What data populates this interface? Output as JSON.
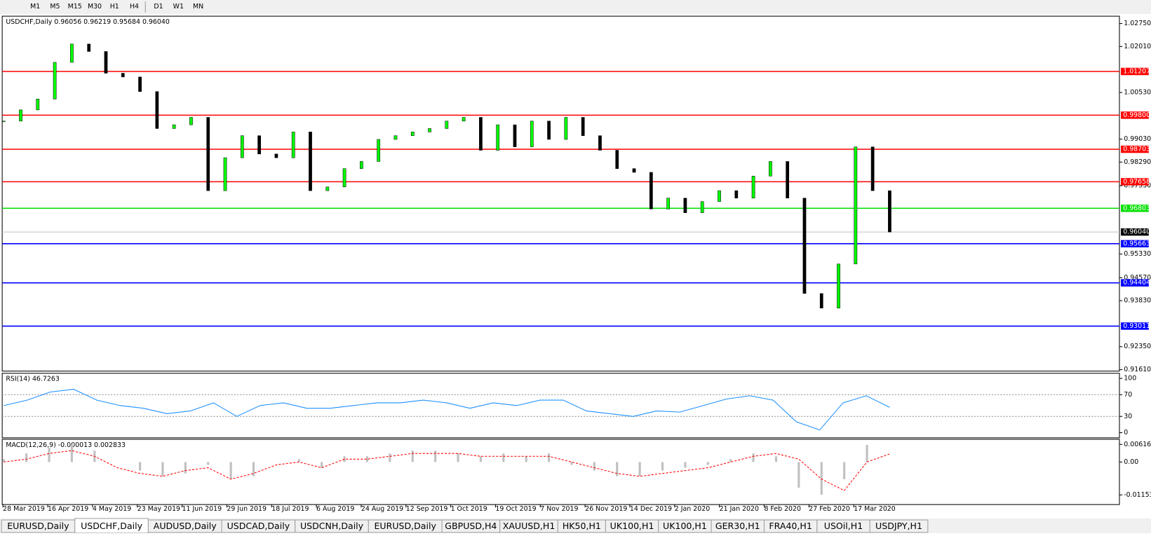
{
  "toolbar": [
    "M1",
    "M5",
    "M15",
    "M30",
    "H1",
    "H4",
    "D1",
    "W1",
    "MN"
  ],
  "chart_data": [
    {
      "type": "candlestick",
      "title": "USDCHF,Daily  0.96056 0.96219 0.95684 0.96040",
      "color_up": "#00ff00",
      "color_down": "#000000",
      "values": [
        0.9961,
        0.9997,
        1.0032,
        1.015,
        1.0209,
        1.0185,
        1.0115,
        1.0103,
        1.0056,
        0.9937,
        0.9949,
        0.9973,
        0.9737,
        0.9843,
        0.9914,
        0.9855,
        0.9843,
        0.9926,
        0.9737,
        0.9749,
        0.9808,
        0.9831,
        0.9902,
        0.9914,
        0.9926,
        0.9937,
        0.9961,
        0.9973,
        0.9867,
        0.9949,
        0.9878,
        0.9961,
        0.9902,
        0.9973,
        0.9914,
        0.9867,
        0.9808,
        0.9796,
        0.9678,
        0.9713,
        0.9666,
        0.9702,
        0.9737,
        0.9713,
        0.9784,
        0.9831,
        0.9713,
        0.9406,
        0.9359,
        0.9501,
        0.9878,
        0.9737,
        0.9604
      ],
      "ylim": [
        0.91563,
        1.02986
      ],
      "yticks": [
        {
          "value": 1.0275,
          "label": "1.02750"
        },
        {
          "value": 1.0201,
          "label": "1.02010"
        },
        {
          "value": 1.0053,
          "label": "1.00530"
        },
        {
          "value": 0.9903,
          "label": "0.99030"
        },
        {
          "value": 0.9829,
          "label": "0.98290"
        },
        {
          "value": 0.9753,
          "label": "0.97530"
        },
        {
          "value": 0.9533,
          "label": "0.95330"
        },
        {
          "value": 0.9457,
          "label": "0.94570"
        },
        {
          "value": 0.9383,
          "label": "0.93830"
        },
        {
          "value": 0.9235,
          "label": "0.92350"
        },
        {
          "value": 0.9161,
          "label": "0.91610"
        }
      ],
      "levels": [
        {
          "value": 1.01207,
          "label": "1.01207",
          "color": "#ff0000"
        },
        {
          "value": 0.998,
          "label": "0.99800",
          "color": "#ff0000"
        },
        {
          "value": 0.98703,
          "label": "0.98703",
          "color": "#ff0000"
        },
        {
          "value": 0.97658,
          "label": "0.97658",
          "color": "#ff0000"
        },
        {
          "value": 0.96803,
          "label": "0.96803",
          "color": "#00e000"
        },
        {
          "value": 0.95663,
          "label": "0.95663",
          "color": "#0000ff"
        },
        {
          "value": 0.94404,
          "label": "0.94404",
          "color": "#0000ff"
        },
        {
          "value": 0.93011,
          "label": "0.93011",
          "color": "#0000ff"
        }
      ],
      "current": {
        "value": 0.9604,
        "label": "0.96040",
        "color": "#000000"
      },
      "xlabels": [
        "28 Mar 2019",
        "16 Apr 2019",
        "4 May 2019",
        "23 May 2019",
        "11 Jun 2019",
        "29 Jun 2019",
        "18 Jul 2019",
        "6 Aug 2019",
        "24 Aug 2019",
        "12 Sep 2019",
        "1 Oct 2019",
        "19 Oct 2019",
        "7 Nov 2019",
        "26 Nov 2019",
        "14 Dec 2019",
        "2 Jan 2020",
        "21 Jan 2020",
        "8 Feb 2020",
        "27 Feb 2020",
        "17 Mar 2020"
      ]
    },
    {
      "type": "line",
      "title": "RSI(14) 46.7263",
      "color": "#1e90ff",
      "values": [
        50,
        60,
        75,
        80,
        60,
        50,
        45,
        35,
        40,
        55,
        30,
        50,
        55,
        45,
        45,
        50,
        55,
        55,
        60,
        55,
        45,
        55,
        50,
        60,
        60,
        40,
        35,
        30,
        40,
        38,
        50,
        62,
        68,
        60,
        20,
        5,
        55,
        68,
        46.7263
      ],
      "ylim": [
        -9.46,
        109.46
      ],
      "yticks": [
        0,
        30,
        70,
        100
      ],
      "levels": [
        30,
        70
      ]
    },
    {
      "type": "macd",
      "title": "MACD(12,26,9) -0.000013 0.002833",
      "color": "#c0c0c0",
      "signal_color": "#ff0000",
      "values": [
        0.001,
        0.003,
        0.005,
        0.006,
        0.004,
        0.0,
        -0.003,
        -0.005,
        -0.004,
        -0.001,
        -0.006,
        -0.005,
        0.0,
        0.001,
        -0.002,
        0.002,
        0.002,
        0.003,
        0.004,
        0.004,
        0.003,
        0.002,
        0.003,
        0.002,
        0.003,
        -0.001,
        -0.003,
        -0.005,
        -0.005,
        -0.003,
        -0.002,
        -0.001,
        0.001,
        0.003,
        0.002,
        -0.009,
        -0.0115,
        -0.006,
        0.006,
        -1.3e-05
      ],
      "signal": [
        0,
        0.001,
        0.003,
        0.004,
        0.002,
        -0.002,
        -0.004,
        -0.005,
        -0.003,
        -0.002,
        -0.006,
        -0.004,
        -0.001,
        0.0,
        -0.002,
        0.001,
        0.001,
        0.002,
        0.003,
        0.003,
        0.003,
        0.002,
        0.002,
        0.002,
        0.002,
        0.0,
        -0.002,
        -0.004,
        -0.005,
        -0.004,
        -0.003,
        -0.002,
        0.0,
        0.002,
        0.003,
        0.001,
        -0.006,
        -0.01,
        0.0,
        0.002833
      ],
      "ylim": [
        -0.014902,
        0.007965
      ],
      "yticks": [
        {
          "value": 0.006167,
          "label": "0.006167"
        },
        {
          "value": 0,
          "label": "0.00"
        },
        {
          "value": -0.011531,
          "label": "-0.011531"
        }
      ]
    }
  ],
  "tabs": [
    "EURUSD,Daily",
    "USDCHF,Daily",
    "AUDUSD,Daily",
    "USDCAD,Daily",
    "USDCNH,Daily",
    "EURUSD,Daily",
    "GBPUSD,H4",
    "XAUUSD,H1",
    "HK50,H1",
    "UK100,H1",
    "UK100,H1",
    "GER30,H1",
    "FRA40,H1",
    "USOil,H1",
    "USDJPY,H1"
  ],
  "active_tab": 1
}
